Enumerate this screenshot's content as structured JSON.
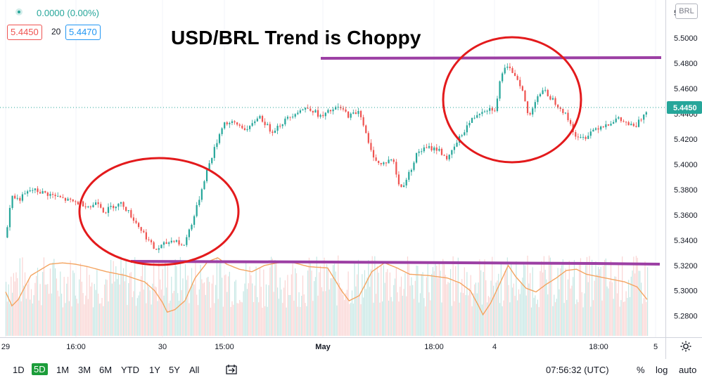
{
  "header": {
    "change": "0.0000 (0.00%)",
    "bid": "5.4450",
    "spread": "20",
    "ask": "5.4470",
    "currency": "BRL"
  },
  "annotation": {
    "title": "USD/BRL Trend is Choppy"
  },
  "colors": {
    "up": "#26a69a",
    "down": "#ef5350",
    "line": "#f4a460",
    "annotation_line": "#9c3fa4",
    "annotation_circle": "#e31a1c",
    "price_tag": "#26a69a"
  },
  "chart_data": {
    "type": "candlestick",
    "title": "USD/BRL Trend is Choppy",
    "y_axis": {
      "ticks": [
        "5.5200",
        "5.5000",
        "5.4800",
        "5.4600",
        "5.4400",
        "5.4200",
        "5.4000",
        "5.3800",
        "5.3600",
        "5.3400",
        "5.3200",
        "5.3000",
        "5.2800"
      ],
      "ylim": [
        5.2765,
        5.5245
      ],
      "current_price": "5.4450"
    },
    "x_axis": {
      "ticks": [
        "29",
        "16:00",
        "30",
        "15:00",
        "May",
        "18:00",
        "4",
        "18:00",
        "5"
      ]
    },
    "price_path": [
      [
        0,
        5.342
      ],
      [
        4,
        5.375
      ],
      [
        10,
        5.372
      ],
      [
        20,
        5.38
      ],
      [
        35,
        5.376
      ],
      [
        50,
        5.371
      ],
      [
        60,
        5.369
      ],
      [
        68,
        5.366
      ],
      [
        72,
        5.372
      ],
      [
        78,
        5.362
      ],
      [
        84,
        5.367
      ],
      [
        92,
        5.369
      ],
      [
        100,
        5.358
      ],
      [
        110,
        5.344
      ],
      [
        118,
        5.332
      ],
      [
        126,
        5.337
      ],
      [
        134,
        5.341
      ],
      [
        140,
        5.334
      ],
      [
        150,
        5.362
      ],
      [
        158,
        5.392
      ],
      [
        166,
        5.415
      ],
      [
        172,
        5.433
      ],
      [
        182,
        5.432
      ],
      [
        192,
        5.427
      ],
      [
        200,
        5.439
      ],
      [
        210,
        5.426
      ],
      [
        220,
        5.434
      ],
      [
        230,
        5.442
      ],
      [
        240,
        5.445
      ],
      [
        250,
        5.437
      ],
      [
        256,
        5.442
      ],
      [
        264,
        5.445
      ],
      [
        272,
        5.438
      ],
      [
        280,
        5.443
      ],
      [
        288,
        5.412
      ],
      [
        296,
        5.399
      ],
      [
        306,
        5.405
      ],
      [
        312,
        5.38
      ],
      [
        318,
        5.39
      ],
      [
        326,
        5.41
      ],
      [
        334,
        5.413
      ],
      [
        342,
        5.412
      ],
      [
        350,
        5.404
      ],
      [
        358,
        5.419
      ],
      [
        366,
        5.432
      ],
      [
        374,
        5.441
      ],
      [
        380,
        5.444
      ],
      [
        388,
        5.444
      ],
      [
        392,
        5.472
      ],
      [
        396,
        5.476
      ],
      [
        402,
        5.473
      ],
      [
        408,
        5.462
      ],
      [
        414,
        5.436
      ],
      [
        420,
        5.454
      ],
      [
        426,
        5.458
      ],
      [
        432,
        5.452
      ],
      [
        440,
        5.444
      ],
      [
        446,
        5.434
      ],
      [
        452,
        5.42
      ],
      [
        458,
        5.421
      ],
      [
        464,
        5.427
      ],
      [
        470,
        5.43
      ],
      [
        476,
        5.432
      ],
      [
        484,
        5.436
      ],
      [
        492,
        5.432
      ],
      [
        498,
        5.429
      ],
      [
        504,
        5.438
      ],
      [
        508,
        5.445
      ]
    ],
    "oscillator_path": [
      [
        0,
        5.299
      ],
      [
        5,
        5.288
      ],
      [
        10,
        5.293
      ],
      [
        20,
        5.312
      ],
      [
        35,
        5.321
      ],
      [
        45,
        5.322
      ],
      [
        55,
        5.321
      ],
      [
        65,
        5.319
      ],
      [
        80,
        5.315
      ],
      [
        95,
        5.312
      ],
      [
        110,
        5.307
      ],
      [
        118,
        5.3
      ],
      [
        124,
        5.291
      ],
      [
        128,
        5.283
      ],
      [
        134,
        5.285
      ],
      [
        142,
        5.292
      ],
      [
        150,
        5.31
      ],
      [
        160,
        5.323
      ],
      [
        168,
        5.326
      ],
      [
        175,
        5.321
      ],
      [
        185,
        5.317
      ],
      [
        195,
        5.315
      ],
      [
        205,
        5.32
      ],
      [
        215,
        5.322
      ],
      [
        225,
        5.323
      ],
      [
        240,
        5.319
      ],
      [
        255,
        5.318
      ],
      [
        266,
        5.3
      ],
      [
        272,
        5.292
      ],
      [
        280,
        5.296
      ],
      [
        290,
        5.315
      ],
      [
        300,
        5.322
      ],
      [
        310,
        5.318
      ],
      [
        320,
        5.313
      ],
      [
        335,
        5.312
      ],
      [
        350,
        5.31
      ],
      [
        360,
        5.306
      ],
      [
        368,
        5.3
      ],
      [
        374,
        5.289
      ],
      [
        378,
        5.281
      ],
      [
        384,
        5.29
      ],
      [
        392,
        5.307
      ],
      [
        398,
        5.32
      ],
      [
        404,
        5.311
      ],
      [
        412,
        5.302
      ],
      [
        420,
        5.299
      ],
      [
        428,
        5.305
      ],
      [
        436,
        5.31
      ],
      [
        444,
        5.316
      ],
      [
        452,
        5.317
      ],
      [
        460,
        5.313
      ],
      [
        470,
        5.311
      ],
      [
        480,
        5.309
      ],
      [
        490,
        5.307
      ],
      [
        500,
        5.303
      ],
      [
        508,
        5.293
      ]
    ]
  },
  "bottom_bar": {
    "timeframes": [
      "1D",
      "5D",
      "1M",
      "3M",
      "6M",
      "YTD",
      "1Y",
      "5Y",
      "All"
    ],
    "active_timeframe": "5D",
    "clock": "07:56:32 (UTC)",
    "percent": "%",
    "log": "log",
    "auto": "auto"
  }
}
